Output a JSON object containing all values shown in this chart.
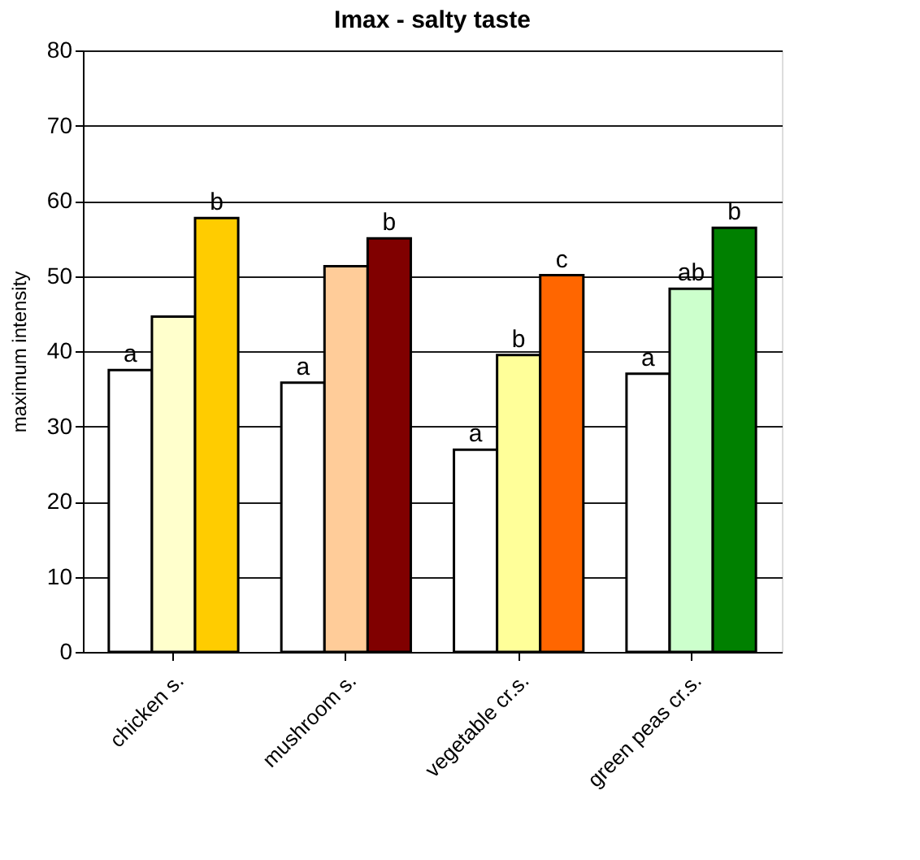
{
  "chart_data": {
    "type": "bar",
    "title": "Imax - salty taste",
    "ylabel": "maximum intensity",
    "categories": [
      "chicken s.",
      "mushroom s.",
      "vegetable cr.s.",
      "green peas cr.s."
    ],
    "series": [
      {
        "colors": [
          "#ffffff",
          "#ffffff",
          "#ffffff",
          "#ffffff"
        ],
        "values": [
          37.5,
          35.8,
          26.9,
          37.0
        ],
        "value_labels": [
          "a",
          "a",
          "a",
          "a"
        ]
      },
      {
        "colors": [
          "#ffffcc",
          "#ffcc99",
          "#ffff99",
          "#ccffcc"
        ],
        "values": [
          44.6,
          51.3,
          39.5,
          48.3
        ],
        "value_labels": [
          null,
          null,
          "b",
          "ab"
        ]
      },
      {
        "colors": [
          "#ffcc00",
          "#800000",
          "#ff6600",
          "#008000"
        ],
        "values": [
          57.7,
          55.0,
          50.1,
          56.4
        ],
        "value_labels": [
          "b",
          "b",
          "c",
          "b"
        ]
      }
    ],
    "ylim": [
      0,
      80
    ],
    "yticks": [
      0,
      10,
      20,
      30,
      40,
      50,
      60,
      70,
      80
    ],
    "grid": "y",
    "legend": false
  }
}
